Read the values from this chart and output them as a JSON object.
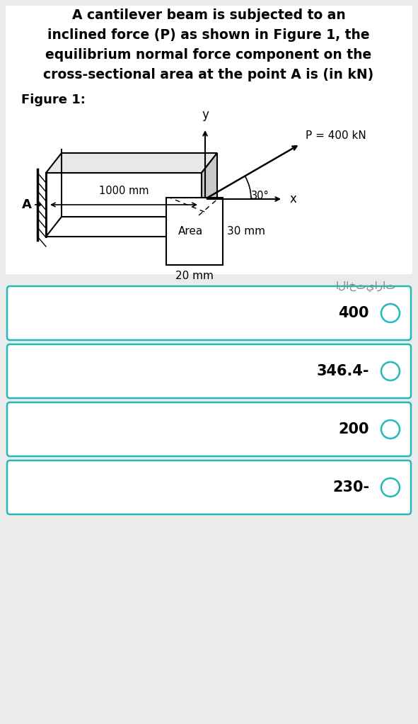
{
  "title_line1": "A cantilever beam is subjected to an",
  "title_line2": "inclined force (P) as shown in Figure 1, the",
  "title_line3": "equilibrium normal force component on the",
  "title_line4": "cross-sectional area at the point A is (in kN)",
  "figure_label": "Figure 1:",
  "bg_color": "#ebebeb",
  "panel_bg": "#ffffff",
  "answer_label": "الاختيارات",
  "choices": [
    "400",
    "346.4-",
    "200",
    "230-"
  ],
  "beam_length_label": "1000 mm",
  "force_label": "P = 400 kN",
  "angle_label": "30°",
  "area_label": "Area",
  "dim1_label": "30 mm",
  "dim2_label": "20 mm",
  "point_label": "A",
  "x_label": "x",
  "y_label": "y",
  "beam_color": "#ffffff",
  "right_face_color": "#c8c8c8",
  "top_face_color": "#e8e8e8",
  "choice_border": "#26b8b8",
  "circle_color": "#26b8b8",
  "answer_text_color": "#888888"
}
